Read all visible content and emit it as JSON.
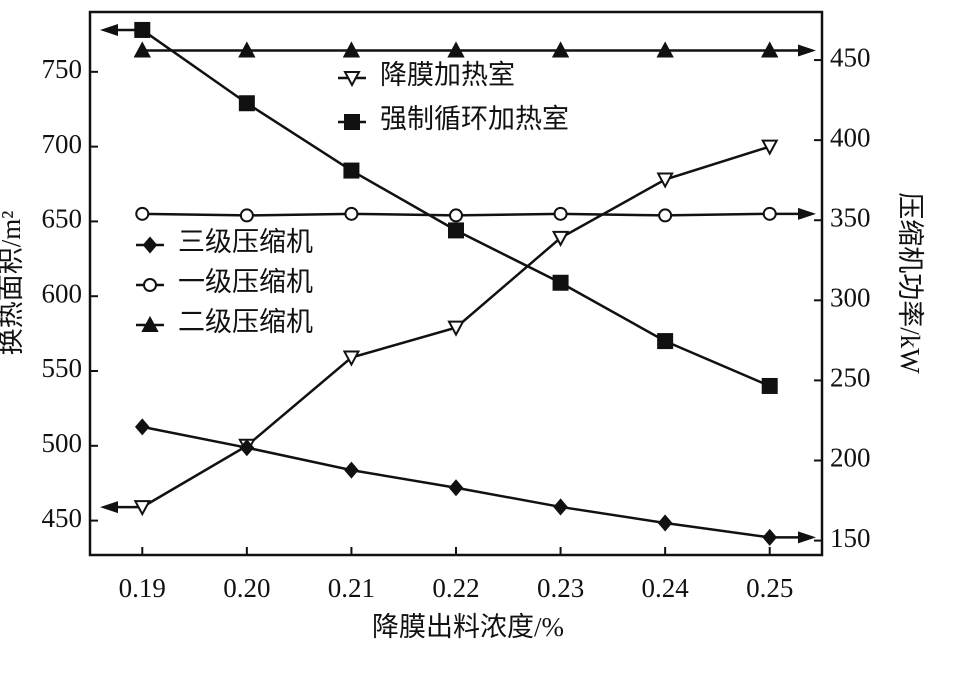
{
  "chart_data": {
    "type": "line",
    "xlabel": "降膜出料浓度/%",
    "ylabel": "换热面积/m²",
    "y2label": "压缩机功率/kW",
    "x": [
      0.19,
      0.2,
      0.21,
      0.22,
      0.23,
      0.24,
      0.25
    ],
    "xlim": [
      0.185,
      0.255
    ],
    "xticks": [
      0.19,
      {
        "value": 0.2,
        "label": "0.20"
      },
      0.21,
      0.22,
      0.23,
      0.24,
      0.25
    ],
    "ylim": [
      427,
      790
    ],
    "yticks": [
      450,
      500,
      550,
      600,
      650,
      700,
      750
    ],
    "y2lim": [
      141,
      480
    ],
    "y2ticks": [
      150,
      200,
      250,
      300,
      350,
      400,
      450
    ],
    "series": [
      {
        "name": "降膜加热室",
        "color": "#111111",
        "marker": "triangle-down-open",
        "values": [
          459,
          500,
          559,
          579,
          639,
          678,
          700
        ]
      },
      {
        "name": "强制循环加热室",
        "color": "#111111",
        "marker": "square",
        "values": [
          778,
          729,
          684,
          644,
          609,
          570,
          540
        ]
      },
      {
        "name": "三级压缩机",
        "color": "#111111",
        "marker": "diamond",
        "axis": "y2",
        "values": [
          221,
          208,
          194,
          183,
          171,
          161,
          152
        ]
      },
      {
        "name": "一级压缩机",
        "color": "#111111",
        "marker": "circle-open",
        "axis": "y2",
        "values": [
          354,
          353,
          354,
          353,
          354,
          353,
          354
        ]
      },
      {
        "name": "二级压缩机",
        "color": "#111111",
        "marker": "triangle",
        "axis": "y2",
        "values": [
          456,
          456,
          456,
          456,
          456,
          456,
          456
        ]
      }
    ]
  }
}
